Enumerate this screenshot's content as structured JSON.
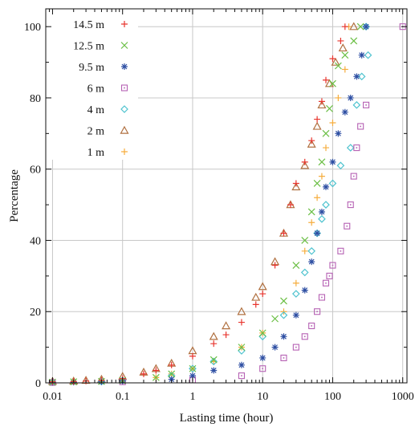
{
  "chart_data": {
    "type": "scatter",
    "title": "",
    "xlabel": "Lasting time (hour)",
    "ylabel": "Percentage",
    "x_scale": "log",
    "xlim": [
      0.008,
      1150
    ],
    "ylim": [
      0,
      105
    ],
    "x_ticks": [
      0.01,
      0.1,
      1,
      10,
      100,
      1000
    ],
    "x_tick_labels": [
      "0.01",
      "0.1",
      "1",
      "10",
      "100",
      "1000"
    ],
    "y_ticks": [
      0,
      20,
      40,
      60,
      80,
      100
    ],
    "y_tick_labels": [
      "0",
      "20",
      "40",
      "60",
      "80",
      "100"
    ],
    "grid": true,
    "legend_position": "top-left",
    "series": [
      {
        "name": "14.5 m",
        "marker": "plus",
        "color": "#e8352e",
        "points": [
          [
            0.01,
            0.3
          ],
          [
            0.02,
            0.4
          ],
          [
            0.03,
            0.5
          ],
          [
            0.05,
            0.7
          ],
          [
            0.1,
            1.2
          ],
          [
            0.2,
            2.5
          ],
          [
            0.3,
            3.5
          ],
          [
            0.5,
            5
          ],
          [
            1,
            7.5
          ],
          [
            2,
            11
          ],
          [
            3,
            13.5
          ],
          [
            5,
            17
          ],
          [
            8,
            22
          ],
          [
            10,
            25
          ],
          [
            15,
            33
          ],
          [
            20,
            42
          ],
          [
            25,
            50
          ],
          [
            30,
            56
          ],
          [
            40,
            62
          ],
          [
            50,
            68
          ],
          [
            60,
            74
          ],
          [
            70,
            79
          ],
          [
            80,
            85
          ],
          [
            100,
            91
          ],
          [
            130,
            96
          ],
          [
            150,
            100
          ]
        ]
      },
      {
        "name": "12.5 m",
        "marker": "cross",
        "color": "#6bbf45",
        "points": [
          [
            0.01,
            0.2
          ],
          [
            0.02,
            0.3
          ],
          [
            0.05,
            0.4
          ],
          [
            0.1,
            0.7
          ],
          [
            0.3,
            1.5
          ],
          [
            0.5,
            2.5
          ],
          [
            1,
            4
          ],
          [
            2,
            6.5
          ],
          [
            5,
            10
          ],
          [
            10,
            14
          ],
          [
            15,
            18
          ],
          [
            20,
            23
          ],
          [
            30,
            33
          ],
          [
            40,
            40
          ],
          [
            50,
            48
          ],
          [
            60,
            56
          ],
          [
            70,
            62
          ],
          [
            80,
            70
          ],
          [
            90,
            77
          ],
          [
            100,
            84
          ],
          [
            120,
            89
          ],
          [
            150,
            92
          ],
          [
            200,
            96
          ],
          [
            250,
            100
          ]
        ]
      },
      {
        "name": "9.5 m",
        "marker": "star",
        "color": "#2e4fa3",
        "points": [
          [
            0.01,
            0.2
          ],
          [
            0.02,
            0.2
          ],
          [
            0.05,
            0.3
          ],
          [
            0.1,
            0.5
          ],
          [
            0.5,
            1
          ],
          [
            1,
            2
          ],
          [
            2,
            3.5
          ],
          [
            5,
            5
          ],
          [
            10,
            7
          ],
          [
            15,
            10
          ],
          [
            20,
            13
          ],
          [
            30,
            19
          ],
          [
            40,
            26
          ],
          [
            50,
            34
          ],
          [
            60,
            42
          ],
          [
            70,
            48
          ],
          [
            80,
            55
          ],
          [
            100,
            62
          ],
          [
            120,
            70
          ],
          [
            150,
            76
          ],
          [
            180,
            80
          ],
          [
            220,
            86
          ],
          [
            260,
            92
          ],
          [
            300,
            100
          ]
        ]
      },
      {
        "name": "6 m",
        "marker": "square",
        "color": "#b560b3",
        "points": [
          [
            0.01,
            0.1
          ],
          [
            0.1,
            0.3
          ],
          [
            1,
            0.8
          ],
          [
            5,
            2
          ],
          [
            10,
            4
          ],
          [
            20,
            7
          ],
          [
            30,
            10
          ],
          [
            40,
            13
          ],
          [
            50,
            16
          ],
          [
            60,
            20
          ],
          [
            70,
            24
          ],
          [
            80,
            28
          ],
          [
            90,
            30
          ],
          [
            100,
            33
          ],
          [
            130,
            37
          ],
          [
            160,
            44
          ],
          [
            180,
            50
          ],
          [
            200,
            58
          ],
          [
            220,
            66
          ],
          [
            250,
            72
          ],
          [
            300,
            78
          ],
          [
            1000,
            100
          ]
        ]
      },
      {
        "name": "4 m",
        "marker": "diamond",
        "color": "#4fc3cf",
        "points": [
          [
            0.01,
            0.2
          ],
          [
            0.05,
            0.4
          ],
          [
            0.1,
            0.7
          ],
          [
            0.5,
            2
          ],
          [
            1,
            4
          ],
          [
            2,
            6
          ],
          [
            5,
            9
          ],
          [
            10,
            13
          ],
          [
            20,
            19
          ],
          [
            30,
            25
          ],
          [
            40,
            31
          ],
          [
            50,
            37
          ],
          [
            60,
            42
          ],
          [
            70,
            46
          ],
          [
            80,
            50
          ],
          [
            100,
            56
          ],
          [
            130,
            61
          ],
          [
            180,
            66
          ],
          [
            220,
            78
          ],
          [
            260,
            86
          ],
          [
            320,
            92
          ],
          [
            300,
            100
          ]
        ]
      },
      {
        "name": "2 m",
        "marker": "triangle",
        "color": "#b07040",
        "points": [
          [
            0.01,
            0.4
          ],
          [
            0.02,
            0.5
          ],
          [
            0.03,
            0.7
          ],
          [
            0.05,
            1
          ],
          [
            0.1,
            1.8
          ],
          [
            0.2,
            3
          ],
          [
            0.3,
            4
          ],
          [
            0.5,
            5.5
          ],
          [
            1,
            9
          ],
          [
            2,
            13
          ],
          [
            3,
            16
          ],
          [
            5,
            20
          ],
          [
            8,
            24
          ],
          [
            10,
            27
          ],
          [
            15,
            34
          ],
          [
            20,
            42
          ],
          [
            25,
            50
          ],
          [
            30,
            55
          ],
          [
            40,
            61
          ],
          [
            50,
            67
          ],
          [
            60,
            72
          ],
          [
            70,
            78
          ],
          [
            90,
            84
          ],
          [
            110,
            90
          ],
          [
            140,
            94
          ],
          [
            200,
            100
          ]
        ]
      },
      {
        "name": "1 m",
        "marker": "plus",
        "color": "#f6ad3d",
        "points": [
          [
            0.01,
            0.3
          ],
          [
            0.05,
            0.5
          ],
          [
            0.1,
            0.8
          ],
          [
            0.3,
            1.5
          ],
          [
            0.5,
            2.5
          ],
          [
            1,
            4
          ],
          [
            2,
            6
          ],
          [
            5,
            10
          ],
          [
            10,
            14
          ],
          [
            20,
            20
          ],
          [
            30,
            28
          ],
          [
            40,
            37
          ],
          [
            50,
            45
          ],
          [
            60,
            52
          ],
          [
            70,
            58
          ],
          [
            80,
            66
          ],
          [
            100,
            73
          ],
          [
            120,
            80
          ],
          [
            150,
            88
          ],
          [
            170,
            100
          ]
        ]
      }
    ]
  }
}
